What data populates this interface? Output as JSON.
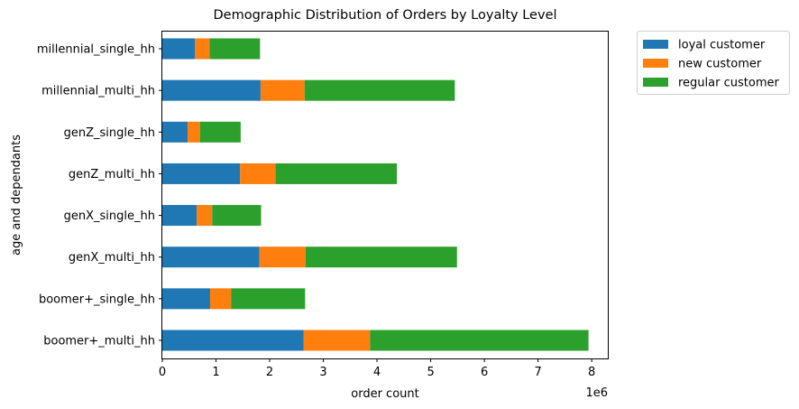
{
  "chart_data": {
    "type": "bar",
    "orientation": "horizontal",
    "stacked": true,
    "title": "Demographic Distribution of Orders by Loyalty Level",
    "xlabel": "order count",
    "ylabel": "age and dependants",
    "x_scale_label": "1e6",
    "xlim": [
      0,
      8.3
    ],
    "x_ticks": [
      0,
      1,
      2,
      3,
      4,
      5,
      6,
      7,
      8
    ],
    "grid": false,
    "legend_position": "outside-right-top",
    "categories": [
      "boomer+_multi_hh",
      "boomer+_single_hh",
      "genX_multi_hh",
      "genX_single_hh",
      "genZ_multi_hh",
      "genZ_single_hh",
      "millennial_multi_hh",
      "millennial_single_hh"
    ],
    "series": [
      {
        "name": "loyal customer",
        "color": "#1f77b4",
        "values": [
          2.63,
          0.89,
          1.81,
          0.64,
          1.45,
          0.47,
          1.83,
          0.61
        ]
      },
      {
        "name": "new customer",
        "color": "#ff7f0e",
        "values": [
          1.24,
          0.39,
          0.86,
          0.29,
          0.66,
          0.23,
          0.82,
          0.27
        ]
      },
      {
        "name": "regular customer",
        "color": "#2ca02c",
        "values": [
          4.07,
          1.38,
          2.82,
          0.91,
          2.26,
          0.76,
          2.8,
          0.94
        ]
      }
    ]
  }
}
